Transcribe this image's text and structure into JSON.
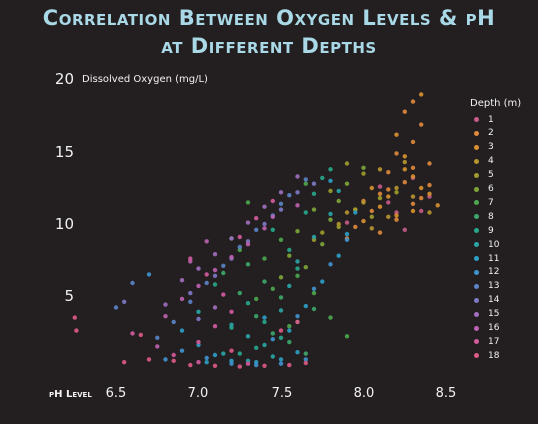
{
  "chart_data": {
    "type": "scatter",
    "title_lines": [
      "Correlation Between Oxygen Levels &  pH",
      "at Different Depths"
    ],
    "xlabel": "pH Level",
    "ylabel": "Dissolved Oxygen (mg/L)",
    "xlim": [
      6.3,
      8.6
    ],
    "ylim": [
      0,
      20.5
    ],
    "x_ticks": [
      "6.5",
      "7.0",
      "7.5",
      "8.0",
      "8.5"
    ],
    "y_ticks": [
      "20",
      "15",
      "10",
      "5"
    ],
    "grid": false,
    "legend_position": "right",
    "legend_title": "Depth (m)",
    "series": [
      {
        "name": "1",
        "color": "#c75b8a",
        "points": [
          [
            8.2,
            10.8
          ],
          [
            8.25,
            9.6
          ],
          [
            8.4,
            11.9
          ],
          [
            8.1,
            12.6
          ],
          [
            7.9,
            10.1
          ],
          [
            8.3,
            13.2
          ],
          [
            8.15,
            11.5
          ],
          [
            8.35,
            10.9
          ]
        ]
      },
      {
        "name": "2",
        "color": "#e08a3c",
        "points": [
          [
            8.3,
            18.5
          ],
          [
            8.25,
            17.8
          ],
          [
            8.35,
            16.9
          ],
          [
            8.3,
            15.7
          ],
          [
            8.2,
            14.9
          ],
          [
            8.4,
            14.2
          ],
          [
            8.15,
            13.6
          ],
          [
            8.25,
            12.9
          ],
          [
            8.1,
            12.1
          ],
          [
            8.3,
            11.4
          ],
          [
            8.05,
            10.9
          ],
          [
            8.2,
            10.3
          ],
          [
            7.95,
            9.8
          ],
          [
            8.1,
            9.4
          ],
          [
            7.9,
            9.0
          ],
          [
            8.35,
            11.8
          ],
          [
            8.4,
            12.7
          ],
          [
            8.0,
            11.6
          ],
          [
            8.15,
            12.4
          ],
          [
            8.3,
            13.9
          ]
        ]
      },
      {
        "name": "3",
        "color": "#d9922f",
        "points": [
          [
            8.35,
            19.0
          ],
          [
            8.2,
            16.2
          ],
          [
            8.25,
            14.7
          ],
          [
            8.3,
            13.3
          ],
          [
            8.4,
            12.1
          ],
          [
            8.1,
            11.2
          ],
          [
            8.2,
            10.6
          ],
          [
            8.0,
            10.2
          ],
          [
            8.3,
            10.9
          ],
          [
            8.15,
            11.9
          ],
          [
            8.05,
            12.5
          ],
          [
            7.95,
            11.0
          ],
          [
            8.45,
            11.3
          ],
          [
            8.35,
            12.5
          ],
          [
            8.25,
            13.8
          ]
        ]
      },
      {
        "name": "4",
        "color": "#b8962f",
        "points": [
          [
            8.1,
            13.8
          ],
          [
            8.2,
            12.5
          ],
          [
            8.0,
            11.5
          ],
          [
            7.9,
            10.8
          ],
          [
            8.3,
            11.9
          ],
          [
            8.15,
            10.5
          ],
          [
            7.85,
            10.0
          ],
          [
            8.05,
            9.7
          ],
          [
            8.25,
            14.3
          ],
          [
            8.4,
            10.8
          ]
        ]
      },
      {
        "name": "5",
        "color": "#9e9d2e",
        "points": [
          [
            7.9,
            14.2
          ],
          [
            8.0,
            13.5
          ],
          [
            7.8,
            12.3
          ],
          [
            8.1,
            11.8
          ],
          [
            7.95,
            11.0
          ],
          [
            7.85,
            9.8
          ],
          [
            7.75,
            9.4
          ],
          [
            8.2,
            12.2
          ],
          [
            7.7,
            8.9
          ],
          [
            8.05,
            10.5
          ]
        ]
      },
      {
        "name": "6",
        "color": "#7ea637",
        "points": [
          [
            7.7,
            11.0
          ],
          [
            7.8,
            10.3
          ],
          [
            7.6,
            9.5
          ],
          [
            7.9,
            12.8
          ],
          [
            7.75,
            8.6
          ],
          [
            7.55,
            7.8
          ],
          [
            7.65,
            7.0
          ],
          [
            7.5,
            6.3
          ],
          [
            8.0,
            13.9
          ],
          [
            7.85,
            11.6
          ]
        ]
      },
      {
        "name": "7",
        "color": "#4ea84f",
        "points": [
          [
            7.3,
            11.5
          ],
          [
            7.5,
            8.9
          ],
          [
            7.4,
            7.6
          ],
          [
            7.6,
            6.4
          ],
          [
            7.45,
            5.5
          ],
          [
            7.35,
            4.8
          ],
          [
            7.7,
            5.2
          ],
          [
            7.8,
            3.5
          ],
          [
            7.55,
            2.9
          ],
          [
            7.65,
            12.8
          ],
          [
            7.25,
            8.2
          ],
          [
            7.9,
            2.2
          ]
        ]
      },
      {
        "name": "8",
        "color": "#3ea86b",
        "points": [
          [
            7.2,
            9.0
          ],
          [
            7.3,
            7.2
          ],
          [
            7.4,
            6.0
          ],
          [
            7.5,
            4.9
          ],
          [
            7.35,
            3.6
          ],
          [
            7.45,
            2.4
          ],
          [
            7.55,
            1.8
          ],
          [
            7.6,
            3.2
          ],
          [
            7.7,
            4.1
          ],
          [
            7.25,
            5.2
          ],
          [
            7.15,
            6.6
          ],
          [
            7.65,
            1.0
          ]
        ]
      },
      {
        "name": "9",
        "color": "#27a88d",
        "points": [
          [
            7.1,
            5.8
          ],
          [
            7.3,
            4.5
          ],
          [
            7.4,
            3.2
          ],
          [
            7.5,
            2.1
          ],
          [
            7.35,
            1.4
          ],
          [
            7.2,
            2.8
          ],
          [
            7.6,
            6.9
          ],
          [
            7.55,
            8.2
          ],
          [
            7.45,
            9.6
          ],
          [
            7.65,
            10.8
          ],
          [
            7.7,
            12.1
          ],
          [
            7.75,
            13.2
          ],
          [
            7.8,
            13.8
          ],
          [
            7.25,
            1.0
          ]
        ]
      },
      {
        "name": "10",
        "color": "#2aa6a9",
        "points": [
          [
            7.0,
            3.9
          ],
          [
            7.2,
            3.0
          ],
          [
            7.3,
            2.2
          ],
          [
            7.4,
            1.6
          ],
          [
            7.15,
            1.0
          ],
          [
            7.5,
            4.0
          ],
          [
            7.55,
            5.7
          ],
          [
            7.6,
            7.4
          ],
          [
            7.7,
            9.1
          ],
          [
            7.8,
            10.7
          ],
          [
            7.85,
            12.3
          ],
          [
            7.3,
            0.5
          ],
          [
            7.45,
            0.8
          ]
        ]
      },
      {
        "name": "11",
        "color": "#2ea0c6",
        "points": [
          [
            6.9,
            2.6
          ],
          [
            7.0,
            1.6
          ],
          [
            7.1,
            0.9
          ],
          [
            7.2,
            0.5
          ],
          [
            7.35,
            0.4
          ],
          [
            7.5,
            0.6
          ],
          [
            7.6,
            1.1
          ],
          [
            7.55,
            2.6
          ],
          [
            7.65,
            4.3
          ],
          [
            7.75,
            6.0
          ],
          [
            7.85,
            7.8
          ],
          [
            7.9,
            9.3
          ],
          [
            7.95,
            10.8
          ],
          [
            7.8,
            13.0
          ],
          [
            7.05,
            0.4
          ],
          [
            7.4,
            3.5
          ]
        ]
      },
      {
        "name": "12",
        "color": "#3f94d0",
        "points": [
          [
            6.9,
            1.2
          ],
          [
            7.05,
            0.7
          ],
          [
            7.2,
            0.3
          ],
          [
            7.35,
            0.2
          ],
          [
            7.5,
            0.3
          ],
          [
            7.65,
            0.6
          ],
          [
            7.45,
            2.0
          ],
          [
            7.6,
            3.6
          ],
          [
            7.7,
            5.5
          ],
          [
            7.8,
            7.2
          ],
          [
            7.9,
            8.9
          ],
          [
            6.8,
            0.6
          ],
          [
            6.7,
            6.5
          ]
        ]
      },
      {
        "name": "13",
        "color": "#5c84c9",
        "points": [
          [
            6.85,
            3.2
          ],
          [
            6.95,
            4.6
          ],
          [
            7.05,
            5.9
          ],
          [
            7.15,
            7.1
          ],
          [
            7.25,
            8.4
          ],
          [
            7.35,
            9.6
          ],
          [
            7.45,
            10.6
          ],
          [
            7.5,
            11.4
          ],
          [
            6.5,
            4.2
          ],
          [
            6.6,
            5.9
          ],
          [
            6.75,
            2.1
          ],
          [
            7.55,
            12.0
          ],
          [
            7.65,
            13.1
          ]
        ]
      },
      {
        "name": "14",
        "color": "#7f7ac7",
        "points": [
          [
            6.95,
            5.2
          ],
          [
            7.1,
            6.4
          ],
          [
            7.2,
            7.6
          ],
          [
            7.3,
            8.8
          ],
          [
            7.4,
            10.0
          ],
          [
            7.5,
            11.0
          ],
          [
            6.55,
            4.6
          ],
          [
            7.0,
            3.4
          ],
          [
            7.6,
            12.2
          ],
          [
            7.7,
            12.8
          ]
        ]
      },
      {
        "name": "15",
        "color": "#a26ec0",
        "points": [
          [
            6.9,
            6.1
          ],
          [
            7.0,
            6.9
          ],
          [
            7.1,
            7.9
          ],
          [
            7.2,
            9.0
          ],
          [
            7.3,
            10.1
          ],
          [
            7.4,
            11.2
          ],
          [
            6.8,
            4.4
          ],
          [
            7.5,
            12.2
          ],
          [
            7.6,
            13.3
          ],
          [
            7.1,
            4.2
          ]
        ]
      },
      {
        "name": "16",
        "color": "#bf62b3",
        "points": [
          [
            6.8,
            3.6
          ],
          [
            6.9,
            4.8
          ],
          [
            7.0,
            5.7
          ],
          [
            7.1,
            6.8
          ],
          [
            7.2,
            7.7
          ],
          [
            7.3,
            8.6
          ],
          [
            7.4,
            9.7
          ],
          [
            7.45,
            10.5
          ],
          [
            7.6,
            11.3
          ],
          [
            6.75,
            1.5
          ],
          [
            7.05,
            8.8
          ],
          [
            6.95,
            7.4
          ]
        ]
      },
      {
        "name": "17",
        "color": "#d45b9e",
        "points": [
          [
            6.85,
            0.9
          ],
          [
            7.0,
            1.8
          ],
          [
            7.1,
            2.9
          ],
          [
            7.2,
            3.9
          ],
          [
            7.15,
            5.1
          ],
          [
            7.05,
            6.5
          ],
          [
            6.95,
            7.6
          ],
          [
            7.25,
            9.1
          ],
          [
            7.35,
            10.4
          ],
          [
            7.45,
            11.6
          ],
          [
            6.6,
            2.4
          ],
          [
            7.0,
            0.4
          ],
          [
            7.3,
            0.3
          ]
        ]
      },
      {
        "name": "18",
        "color": "#e05a86",
        "points": [
          [
            6.95,
            0.2
          ],
          [
            7.1,
            0.15
          ],
          [
            7.25,
            0.1
          ],
          [
            7.4,
            0.15
          ],
          [
            7.55,
            0.2
          ],
          [
            7.65,
            0.35
          ],
          [
            6.85,
            0.5
          ],
          [
            6.7,
            0.6
          ],
          [
            6.65,
            2.3
          ],
          [
            6.55,
            0.4
          ],
          [
            6.25,
            3.5
          ],
          [
            6.26,
            2.6
          ],
          [
            7.2,
            1.2
          ],
          [
            7.5,
            2.6
          ],
          [
            7.6,
            3.2
          ]
        ]
      }
    ]
  }
}
